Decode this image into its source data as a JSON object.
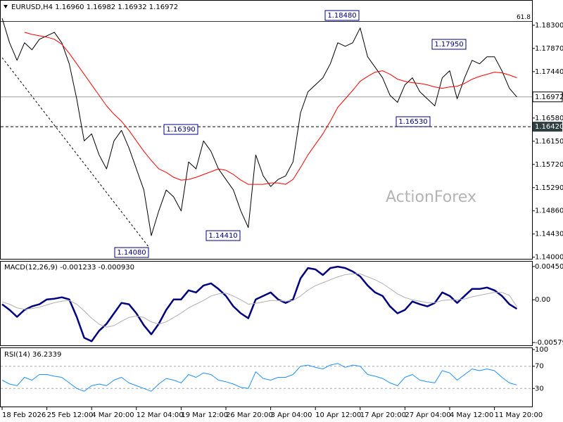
{
  "chart_data": [
    {
      "type": "line",
      "title": "EURUSD,H4  1.16960 1.16982 1.16932 1.16972",
      "watermark": "ActionForex",
      "series": [
        {
          "color": "#000000",
          "width": 1,
          "values": [
            1.1843,
            1.17975,
            1.1765,
            1.17975,
            1.17845,
            1.1804,
            1.18105,
            1.1817,
            1.17975,
            1.17586,
            1.16936,
            1.16157,
            1.16287,
            1.15897,
            1.15637,
            1.16157,
            1.16352,
            1.16027,
            1.15637,
            1.15247,
            1.144,
            1.14858,
            1.15247,
            1.15117,
            1.14858,
            1.15767,
            1.15637,
            1.16157,
            1.15962,
            1.15637,
            1.15442,
            1.15247,
            1.14858,
            1.1455,
            1.15897,
            1.15507,
            1.15312,
            1.15442,
            1.15507,
            1.15767,
            1.16676,
            1.17066,
            1.17196,
            1.17326,
            1.17586,
            1.17975,
            1.1791,
            1.17975,
            1.1825,
            1.17716,
            1.17521,
            1.17326,
            1.17001,
            1.16871,
            1.17196,
            1.17326,
            1.17066,
            1.16936,
            1.16806,
            1.17326,
            1.17456,
            1.16936,
            1.17326,
            1.1765,
            1.17586,
            1.17716,
            1.17716,
            1.17456,
            1.17131,
            1.16972
          ]
        },
        {
          "color": "#ff0000",
          "width": 1,
          "values": [
            null,
            null,
            null,
            1.1817,
            1.18131,
            1.18105,
            1.18079,
            1.1804,
            1.17949,
            1.1778,
            1.17586,
            1.17391,
            1.17196,
            1.17001,
            1.16806,
            1.1665,
            1.1652,
            1.16352,
            1.16157,
            1.15962,
            1.15793,
            1.15637,
            1.15572,
            1.15481,
            1.15429,
            1.15442,
            1.15481,
            1.15533,
            1.15585,
            1.15637,
            1.15611,
            1.15533,
            1.15429,
            1.15351,
            1.15351,
            1.15351,
            1.15377,
            1.15377,
            1.15351,
            1.15442,
            1.15663,
            1.15897,
            1.16092,
            1.16287,
            1.1652,
            1.1678,
            1.16936,
            1.17092,
            1.17261,
            1.17352,
            1.1743,
            1.17456,
            1.17391,
            1.173,
            1.17261,
            1.17235,
            1.17222,
            1.17196,
            1.17157,
            1.17131,
            1.17157,
            1.1717,
            1.17222,
            1.173,
            1.17352,
            1.17391,
            1.1743,
            1.17417,
            1.17378,
            1.17326
          ]
        }
      ],
      "ylim": [
        1.1397,
        1.18755
      ],
      "yticks": [
        {
          "value": 1.183,
          "label": "1.18300"
        },
        {
          "value": 1.1787,
          "label": "1.17870"
        },
        {
          "value": 1.1744,
          "label": "1.17440"
        },
        {
          "value": 1.1701,
          "label": "1.17010"
        },
        {
          "value": 1.1658,
          "label": "1.16580"
        },
        {
          "value": 1.1615,
          "label": "1.16150"
        },
        {
          "value": 1.1572,
          "label": "1.15720"
        },
        {
          "value": 1.1529,
          "label": "1.15290"
        },
        {
          "value": 1.1486,
          "label": "1.14860"
        },
        {
          "value": 1.1443,
          "label": "1.14430"
        },
        {
          "value": 1.14,
          "label": "1.14000"
        }
      ],
      "hlines": [
        {
          "value": 1.1837,
          "label": "61.8",
          "style": "solid"
        },
        {
          "value": 1.16972,
          "label": "1.16972",
          "style": "current"
        },
        {
          "value": 1.1642,
          "label": "1.16420",
          "style": "dashed"
        }
      ],
      "annotations": [
        "1.18480",
        "1.17950",
        "1.16530",
        "1.16390",
        "1.14410",
        "1.14080"
      ],
      "grid": false
    },
    {
      "type": "line",
      "title": "MACD(12,26,9) -0.001233 -0.000930",
      "series": [
        {
          "color": "#000080",
          "width": 2.5,
          "values": [
            -0.000614,
            -0.001369,
            -0.002314,
            -0.001369,
            -0.000897,
            -0.000614,
            4.7e-05,
            0.000142,
            0.00033,
            4.7e-05,
            -0.002314,
            -0.005146,
            -0.005619,
            -0.004202,
            -0.003258,
            -0.001841,
            -0.000425,
            -0.000614,
            -0.001841,
            -0.003447,
            -0.004674,
            -0.003258,
            -0.001369,
            4.7e-05,
            4.7e-05,
            0.001275,
            0.000992,
            0.001936,
            0.002219,
            0.001464,
            0.000519,
            -0.000897,
            -0.001841,
            -0.002502,
            4.7e-05,
            0.000519,
            0.000992,
            4.7e-05,
            -0.000425,
            4.7e-05,
            0.00288,
            0.004297,
            0.004108,
            0.003352,
            0.004297,
            0.004485,
            0.004297,
            0.003824,
            0.003163,
            0.001936,
            0.000992,
            0.000519,
            -0.000897,
            -0.001841,
            -0.001369,
            -0.000236,
            -0.000614,
            -0.000897,
            -0.000425,
            0.000992,
            0.000519,
            -0.000425,
            0.000519,
            0.001464,
            0.001464,
            0.001653,
            0.001275,
            0.000519,
            -0.000614,
            -0.001233
          ]
        },
        {
          "color": "#b0b0b0",
          "width": 1,
          "values": [
            -0.0003,
            -0.0006,
            -0.0011,
            -0.0013,
            -0.0012,
            -0.001,
            -0.0007,
            -0.0004,
            -0.0002,
            -0.0001,
            -0.0006,
            -0.0015,
            -0.0025,
            -0.0033,
            -0.0037,
            -0.0035,
            -0.0029,
            -0.0024,
            -0.0022,
            -0.0024,
            -0.003,
            -0.0033,
            -0.003,
            -0.0024,
            -0.0018,
            -0.0011,
            -0.0006,
            -0.0001,
            0.0005,
            0.0008,
            0.0009,
            0.0005,
            0,
            -0.0006,
            -0.0005,
            -0.0003,
            -0.0001,
            -0.0001,
            -0.0002,
            -0.0001,
            0.0005,
            0.0013,
            0.0019,
            0.0023,
            0.0027,
            0.0031,
            0.0034,
            0.0035,
            0.0035,
            0.0031,
            0.0027,
            0.0022,
            0.0015,
            0.0008,
            0.0003,
            0,
            -0.0002,
            -0.0004,
            -0.0004,
            -0.0001,
            0,
            0,
            0.0001,
            0.0004,
            0.0006,
            0.0008,
            0.001,
            0.001,
            0.0006,
            -0.00093
          ]
        }
      ],
      "ylim": [
        -0.00617,
        0.00516
      ],
      "yticks": [
        {
          "value": 0.004502,
          "label": "0.004502"
        },
        {
          "value": 0,
          "label": "0.00"
        },
        {
          "value": -0.005791,
          "label": "-0.005791"
        }
      ],
      "grid": false
    },
    {
      "type": "line",
      "title": "RSI(14) 36.2339",
      "series": [
        {
          "color": "#1e90ff",
          "width": 1,
          "values": [
            45,
            38,
            35,
            50,
            45,
            55,
            55,
            52,
            50,
            40,
            30,
            25,
            35,
            38,
            35,
            45,
            50,
            40,
            35,
            30,
            25,
            38,
            48,
            45,
            40,
            55,
            50,
            58,
            55,
            45,
            42,
            38,
            32,
            30,
            60,
            48,
            45,
            50,
            50,
            55,
            70,
            72,
            68,
            65,
            72,
            75,
            68,
            72,
            70,
            55,
            52,
            48,
            40,
            35,
            50,
            55,
            45,
            42,
            40,
            62,
            58,
            45,
            55,
            65,
            62,
            65,
            62,
            50,
            40,
            36.2339
          ]
        }
      ],
      "ylim": [
        0,
        100
      ],
      "yticks": [
        100,
        70,
        30
      ],
      "grid": true,
      "categories": [
        "18 Feb 2026",
        null,
        null,
        null,
        null,
        null,
        "25 Feb 12:00",
        null,
        null,
        null,
        null,
        null,
        "4 Mar 20:00",
        null,
        null,
        null,
        null,
        null,
        "12 Mar 04:00",
        null,
        null,
        null,
        null,
        null,
        "19 Mar 12:00",
        null,
        null,
        null,
        null,
        null,
        "26 Mar 20:00",
        null,
        null,
        null,
        null,
        null,
        "3 Apr 04:00",
        null,
        null,
        null,
        null,
        null,
        "10 Apr 12:00",
        null,
        null,
        null,
        null,
        null,
        "17 Apr 20:00",
        null,
        null,
        null,
        null,
        null,
        "27 Apr 04:00",
        null,
        null,
        null,
        null,
        null,
        "4 May 12:00",
        null,
        null,
        null,
        null,
        null,
        "11 May 20:00",
        null,
        null,
        null
      ]
    }
  ]
}
